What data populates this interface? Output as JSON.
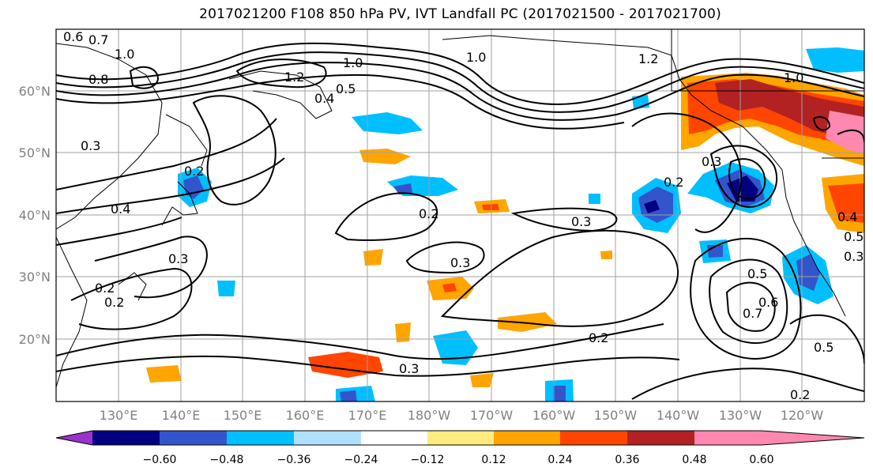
{
  "figure": {
    "title": "2017021200 F108 850 hPa PV, IVT Landfall PC (2017021500 - 2017021700)"
  },
  "axes": {
    "lat_labels": [
      "60°N",
      "50°N",
      "40°N",
      "30°N",
      "20°N"
    ],
    "lon_labels": [
      "130°E",
      "140°E",
      "150°E",
      "160°E",
      "170°E",
      "180°W",
      "170°W",
      "160°W",
      "150°W",
      "140°W",
      "130°W",
      "120°W"
    ]
  },
  "colorbar": {
    "colors": [
      "#9933cc",
      "#000080",
      "#3355cc",
      "#00bfff",
      "#b0e0ff",
      "#ffffff",
      "#ffeb80",
      "#ffa500",
      "#ff4500",
      "#b22222",
      "#ff88b0"
    ],
    "tick_labels": [
      "−0.60",
      "−0.48",
      "−0.36",
      "−0.24",
      "−0.12",
      "0.12",
      "0.24",
      "0.36",
      "0.48",
      "0.60"
    ]
  },
  "contour_labels": [
    "0.6",
    "0.7",
    "1.0",
    "0.8",
    "1.0",
    "1.2",
    "1.0",
    "1.2",
    "1.0",
    "0.4",
    "0.5",
    "0.3",
    "0.4",
    "0.3",
    "0.2",
    "0.2",
    "0.3",
    "0.3",
    "0.2",
    "0.3",
    "0.2",
    "0.3",
    "0.4",
    "0.5",
    "0.6",
    "0.7",
    "0.5",
    "0.3",
    "0.2",
    "0.2",
    "0.5",
    "0.2"
  ]
}
